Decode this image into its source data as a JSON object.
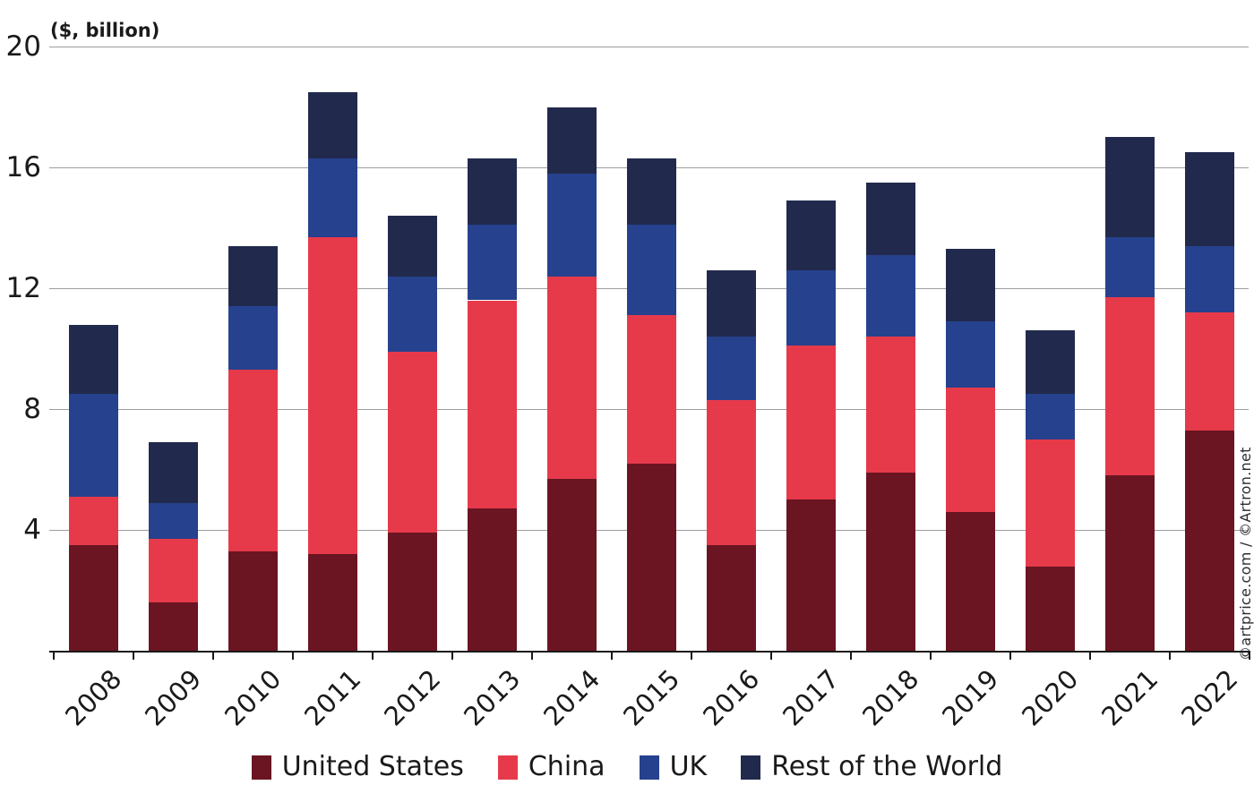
{
  "chart_data": {
    "type": "bar",
    "stacked": true,
    "title": "($, billion)",
    "categories": [
      "2008",
      "2009",
      "2010",
      "2011",
      "2012",
      "2013",
      "2014",
      "2015",
      "2016",
      "2017",
      "2018",
      "2019",
      "2020",
      "2021",
      "2022"
    ],
    "series": [
      {
        "name": "United States",
        "color": "#6a1521",
        "values": [
          3.5,
          1.6,
          3.3,
          3.2,
          3.9,
          4.7,
          5.7,
          6.2,
          3.5,
          5.0,
          5.9,
          4.6,
          2.8,
          5.8,
          7.3
        ]
      },
      {
        "name": "China",
        "color": "#e63a4b",
        "values": [
          1.6,
          2.1,
          6.0,
          10.5,
          6.0,
          6.9,
          6.7,
          4.9,
          4.8,
          5.1,
          4.5,
          4.1,
          4.2,
          5.9,
          3.9
        ]
      },
      {
        "name": "UK",
        "color": "#26418d",
        "values": [
          3.4,
          1.2,
          2.1,
          2.6,
          2.5,
          2.5,
          3.4,
          3.0,
          2.1,
          2.5,
          2.7,
          2.2,
          1.5,
          2.0,
          2.2
        ]
      },
      {
        "name": "Rest of the World",
        "color": "#212a4c",
        "values": [
          2.3,
          2.0,
          2.0,
          2.2,
          2.0,
          2.2,
          2.2,
          2.2,
          2.2,
          2.3,
          2.4,
          2.4,
          2.1,
          3.3,
          3.1
        ]
      }
    ],
    "totals": [
      10.8,
      6.9,
      13.4,
      18.5,
      14.4,
      16.3,
      18.0,
      16.3,
      12.6,
      14.9,
      15.5,
      13.3,
      10.6,
      17.0,
      16.5
    ],
    "y_axis": {
      "ticks": [
        4,
        8,
        12,
        16,
        20
      ],
      "range": [
        0,
        20
      ],
      "grid": true,
      "tick_label_examples": [
        "4",
        "8",
        "12",
        "16",
        "20"
      ]
    },
    "x_axis": {
      "label_rotation_deg": -45
    },
    "legend_position": "bottom",
    "colors": {
      "grid": "#9e9ea2",
      "axis": "#1a1a1a",
      "text": "#1a1a1a",
      "background": "#ffffff"
    }
  },
  "watermark": "©artprice.com / ©Artron.net"
}
